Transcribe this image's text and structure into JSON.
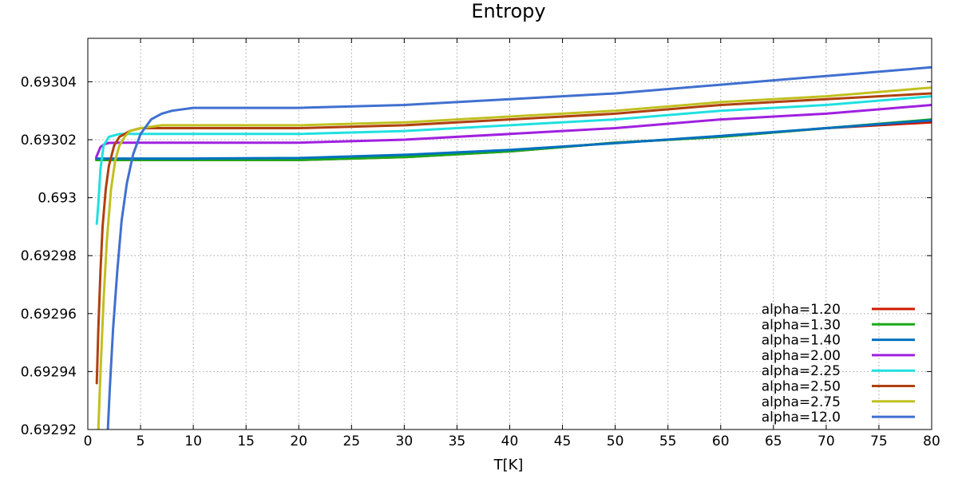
{
  "chart_data": {
    "type": "line",
    "title": "Entropy",
    "xlabel": "T[K]",
    "ylabel": "",
    "xlim": [
      0,
      80
    ],
    "ylim": [
      0.69292,
      0.693055
    ],
    "xticks": [
      0,
      5,
      10,
      15,
      20,
      25,
      30,
      35,
      40,
      45,
      50,
      55,
      60,
      65,
      70,
      75,
      80
    ],
    "xtick_labels": [
      "0",
      "5",
      "10",
      "15",
      "20",
      "25",
      "30",
      "35",
      "40",
      "45",
      "50",
      "55",
      "60",
      "65",
      "70",
      "75",
      "80"
    ],
    "yticks": [
      0.69292,
      0.69294,
      0.69296,
      0.69298,
      0.693,
      0.69302,
      0.69304
    ],
    "ytick_labels": [
      "0.69292",
      "0.69294",
      "0.69296",
      "0.69298",
      "0.693",
      "0.69302",
      "0.69304"
    ],
    "grid": true,
    "legend_position": "bottom-right",
    "series": [
      {
        "name": "alpha=1.20",
        "color": "#cc1a00",
        "x": [
          0.8,
          2,
          5,
          10,
          20,
          30,
          40,
          50,
          60,
          70,
          80
        ],
        "y": [
          0.693013,
          0.693013,
          0.693013,
          0.693013,
          0.693013,
          0.693014,
          0.693016,
          0.693019,
          0.693021,
          0.693024,
          0.693026
        ]
      },
      {
        "name": "alpha=1.30",
        "color": "#1aaa1a",
        "x": [
          0.8,
          2,
          5,
          10,
          20,
          30,
          40,
          50,
          60,
          70,
          80
        ],
        "y": [
          0.693013,
          0.693013,
          0.693013,
          0.693013,
          0.693013,
          0.693014,
          0.693016,
          0.693019,
          0.693021,
          0.693024,
          0.693027
        ]
      },
      {
        "name": "alpha=1.40",
        "color": "#0070c0",
        "x": [
          0.8,
          2,
          5,
          10,
          20,
          30,
          40,
          50,
          60,
          70,
          80
        ],
        "y": [
          0.6930135,
          0.6930135,
          0.6930135,
          0.6930135,
          0.6930137,
          0.6930148,
          0.6930165,
          0.6930188,
          0.6930213,
          0.693024,
          0.6930267
        ]
      },
      {
        "name": "alpha=2.00",
        "color": "#a020e0",
        "x": [
          0.8,
          1.2,
          1.6,
          2,
          3,
          5,
          10,
          20,
          30,
          40,
          50,
          60,
          70,
          80
        ],
        "y": [
          0.693014,
          0.6930175,
          0.6930185,
          0.6930189,
          0.693019,
          0.693019,
          0.693019,
          0.693019,
          0.69302,
          0.693022,
          0.693024,
          0.693027,
          0.693029,
          0.693032
        ]
      },
      {
        "name": "alpha=2.25",
        "color": "#20e0e0",
        "x": [
          0.85,
          1.0,
          1.2,
          1.5,
          2,
          3,
          5,
          10,
          20,
          30,
          40,
          50,
          60,
          70,
          80
        ],
        "y": [
          0.692991,
          0.692998,
          0.69301,
          0.693018,
          0.693021,
          0.693022,
          0.693022,
          0.693022,
          0.693022,
          0.693023,
          0.693025,
          0.693027,
          0.69303,
          0.693032,
          0.693035
        ]
      },
      {
        "name": "alpha=2.50",
        "color": "#b04010",
        "x": [
          0.85,
          1.0,
          1.2,
          1.4,
          1.7,
          2,
          2.5,
          3,
          4,
          5,
          7,
          10,
          20,
          30,
          40,
          50,
          60,
          70,
          80
        ],
        "y": [
          0.692936,
          0.692955,
          0.692975,
          0.69299,
          0.693003,
          0.693011,
          0.693018,
          0.693021,
          0.693023,
          0.693024,
          0.693024,
          0.693024,
          0.693024,
          0.693025,
          0.693027,
          0.693029,
          0.693032,
          0.693034,
          0.693036
        ]
      },
      {
        "name": "alpha=2.75",
        "color": "#c0c020",
        "x": [
          1.0,
          1.2,
          1.5,
          1.8,
          2.2,
          2.6,
          3.0,
          3.5,
          4,
          5,
          7,
          10,
          20,
          30,
          40,
          50,
          60,
          70,
          80
        ],
        "y": [
          0.69292,
          0.69294,
          0.692965,
          0.692985,
          0.693003,
          0.693013,
          0.693018,
          0.693021,
          0.693023,
          0.693024,
          0.693025,
          0.693025,
          0.693025,
          0.693026,
          0.693028,
          0.69303,
          0.693033,
          0.693035,
          0.693038
        ]
      },
      {
        "name": "alpha=12.0",
        "color": "#4070d0",
        "x": [
          1.9,
          2.1,
          2.4,
          2.8,
          3.2,
          3.7,
          4.3,
          5,
          6,
          7,
          8,
          10,
          15,
          20,
          30,
          40,
          50,
          60,
          70,
          80
        ],
        "y": [
          0.69292,
          0.692935,
          0.692955,
          0.692975,
          0.692992,
          0.693005,
          0.693015,
          0.693022,
          0.693027,
          0.693029,
          0.69303,
          0.693031,
          0.693031,
          0.693031,
          0.693032,
          0.693034,
          0.693036,
          0.693039,
          0.693042,
          0.693045
        ]
      }
    ]
  }
}
